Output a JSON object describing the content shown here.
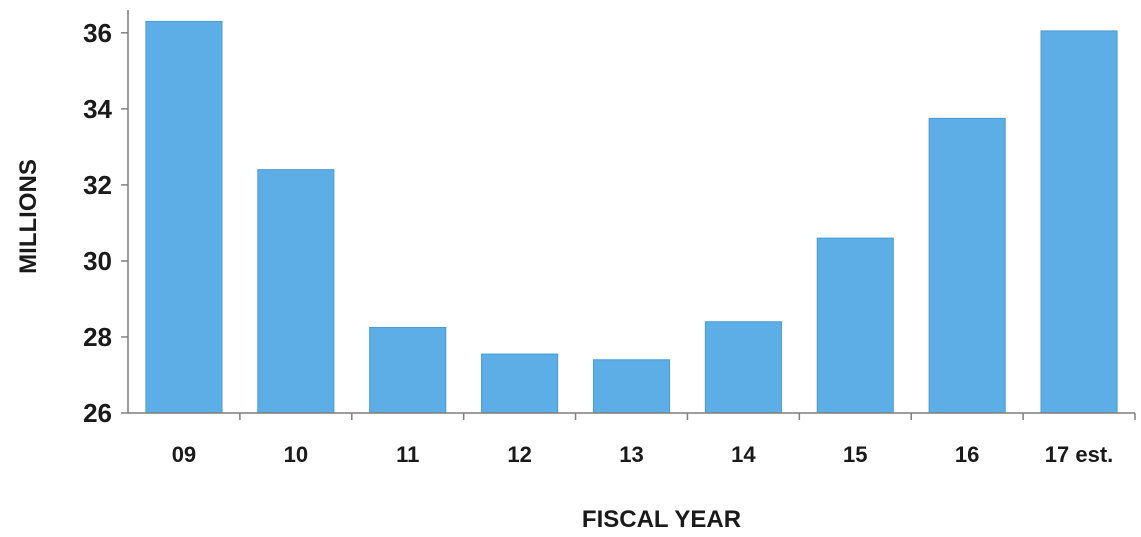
{
  "chart_data": {
    "type": "bar",
    "title": "",
    "xlabel": "FISCAL YEAR",
    "ylabel": "MILLIONS",
    "categories": [
      "09",
      "10",
      "11",
      "12",
      "13",
      "14",
      "15",
      "16",
      "17 est."
    ],
    "values": [
      36.3,
      32.4,
      28.25,
      27.55,
      27.4,
      28.4,
      30.6,
      33.75,
      36.05
    ],
    "ylim": [
      26,
      36.6
    ],
    "yticks": [
      26,
      28,
      30,
      32,
      34,
      36
    ],
    "grid": false,
    "legend": "none",
    "bar_color": "#5dade6",
    "bar_edge_color": "#4a9ad4"
  }
}
